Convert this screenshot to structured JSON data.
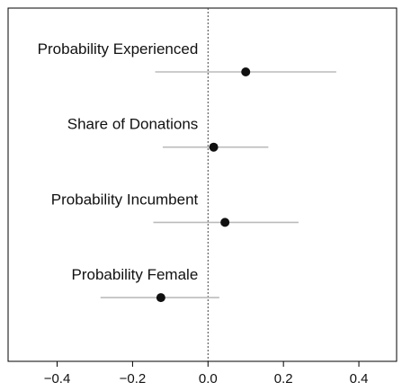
{
  "chart_data": {
    "type": "coefficient-plot",
    "title": "",
    "xlabel": "",
    "ylabel": "",
    "xlim": [
      -0.53,
      0.5
    ],
    "x_ticks": [
      {
        "value": -0.4,
        "label": "−0.4"
      },
      {
        "value": -0.2,
        "label": "−0.2"
      },
      {
        "value": 0.0,
        "label": "0.0"
      },
      {
        "value": 0.2,
        "label": "0.2"
      },
      {
        "value": 0.4,
        "label": "0.4"
      }
    ],
    "reference_line": 0,
    "grid": false,
    "series": [
      {
        "label": "Probability Experienced",
        "estimate": 0.1,
        "ci_low": -0.14,
        "ci_high": 0.34
      },
      {
        "label": "Share of Donations",
        "estimate": 0.015,
        "ci_low": -0.12,
        "ci_high": 0.16
      },
      {
        "label": "Probability Incumbent",
        "estimate": 0.045,
        "ci_low": -0.145,
        "ci_high": 0.24
      },
      {
        "label": "Probability Female",
        "estimate": -0.125,
        "ci_low": -0.285,
        "ci_high": 0.03
      }
    ],
    "colors": {
      "point": "#111111",
      "interval": "#bbbbbb",
      "axis": "#000000",
      "reference": "#444444"
    }
  }
}
